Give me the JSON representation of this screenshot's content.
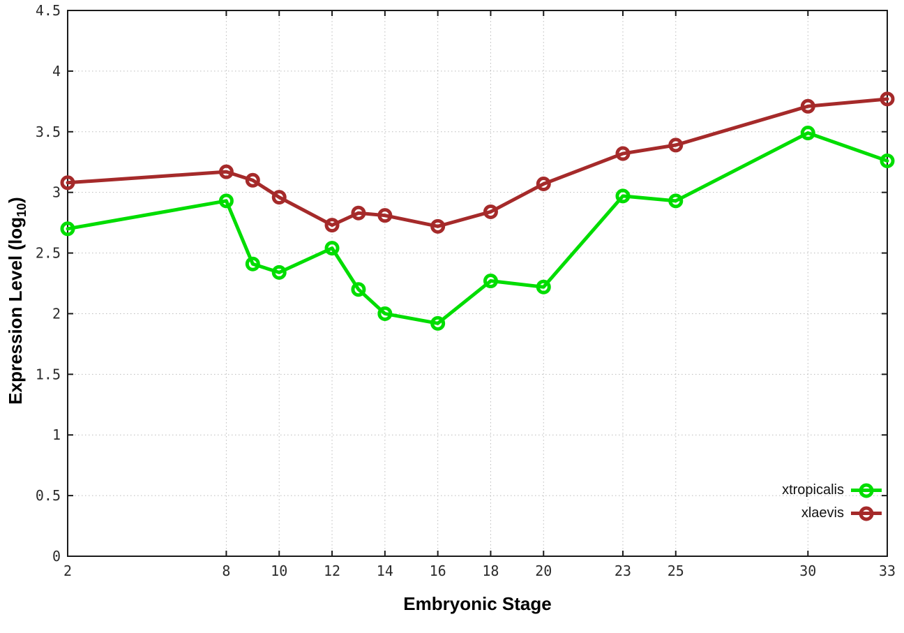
{
  "chart_data": {
    "type": "line",
    "title": "",
    "xlabel": "Embryonic Stage",
    "ylabel": "Expression Level (log10)",
    "ylabel_parts": {
      "prefix": "Expression Level (log",
      "sub": "10",
      "suffix": ")"
    },
    "x": [
      2,
      8,
      9,
      10,
      12,
      13,
      14,
      16,
      18,
      20,
      23,
      25,
      30,
      33
    ],
    "series": [
      {
        "name": "xtropicalis",
        "color": "#00dd00",
        "values": [
          2.7,
          2.93,
          2.41,
          2.34,
          2.54,
          2.2,
          2.0,
          1.92,
          2.27,
          2.22,
          2.97,
          2.93,
          3.49,
          3.26
        ]
      },
      {
        "name": "xlaevis",
        "color": "#a52a2a",
        "values": [
          3.08,
          3.17,
          3.1,
          2.96,
          2.73,
          2.83,
          2.81,
          2.72,
          2.84,
          3.07,
          3.32,
          3.39,
          3.71,
          3.77
        ]
      }
    ],
    "xlim": [
      2,
      33
    ],
    "ylim": [
      0,
      4.5
    ],
    "x_ticks": [
      2,
      8,
      10,
      12,
      14,
      16,
      18,
      20,
      23,
      25,
      30,
      33
    ],
    "y_ticks": [
      0,
      0.5,
      1,
      1.5,
      2,
      2.5,
      3,
      3.5,
      4,
      4.5
    ],
    "y_tick_labels": [
      "0",
      "0.5",
      "1",
      "1.5",
      "2",
      "2.5",
      "3",
      "3.5",
      "4",
      "4.5"
    ],
    "grid": true,
    "legend_position": "bottom-right"
  },
  "style": {
    "background_color": "#ffffff",
    "border_color": "#1a1a1a",
    "grid_color": "#bbbbbb",
    "tick_label_color": "#2b2b2b"
  }
}
